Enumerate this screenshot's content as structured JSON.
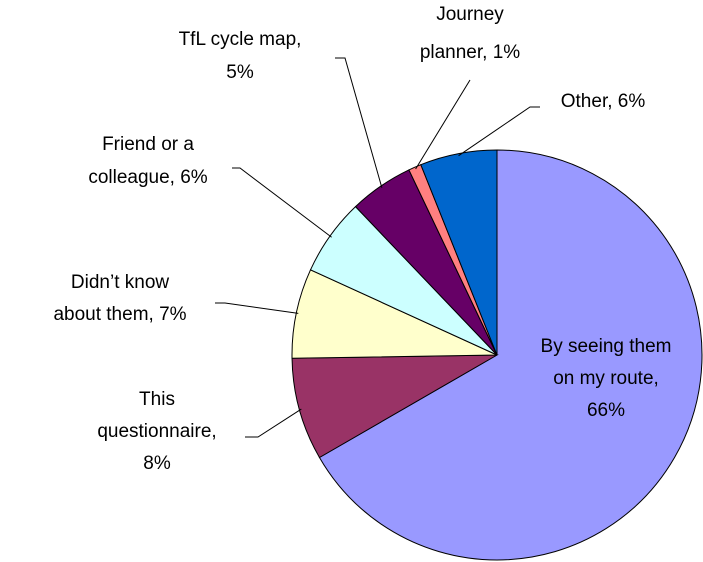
{
  "chart_data": {
    "type": "pie",
    "values": [
      66,
      8,
      7,
      6,
      5,
      1,
      6
    ],
    "value_labels": [
      "By seeing them\non my route,\n66%",
      "This\nquestionnaire,\n8%",
      "Didn’t know\nabout them, 7%",
      "Friend or a\ncolleague, 6%",
      "TfL cycle map,\n5%",
      "Journey\nplanner, 1%",
      "Other, 6%"
    ],
    "colors": [
      "#9999ff",
      "#993366",
      "#ffffcc",
      "#ccffff",
      "#660066",
      "#ff8080",
      "#0066cc"
    ]
  }
}
